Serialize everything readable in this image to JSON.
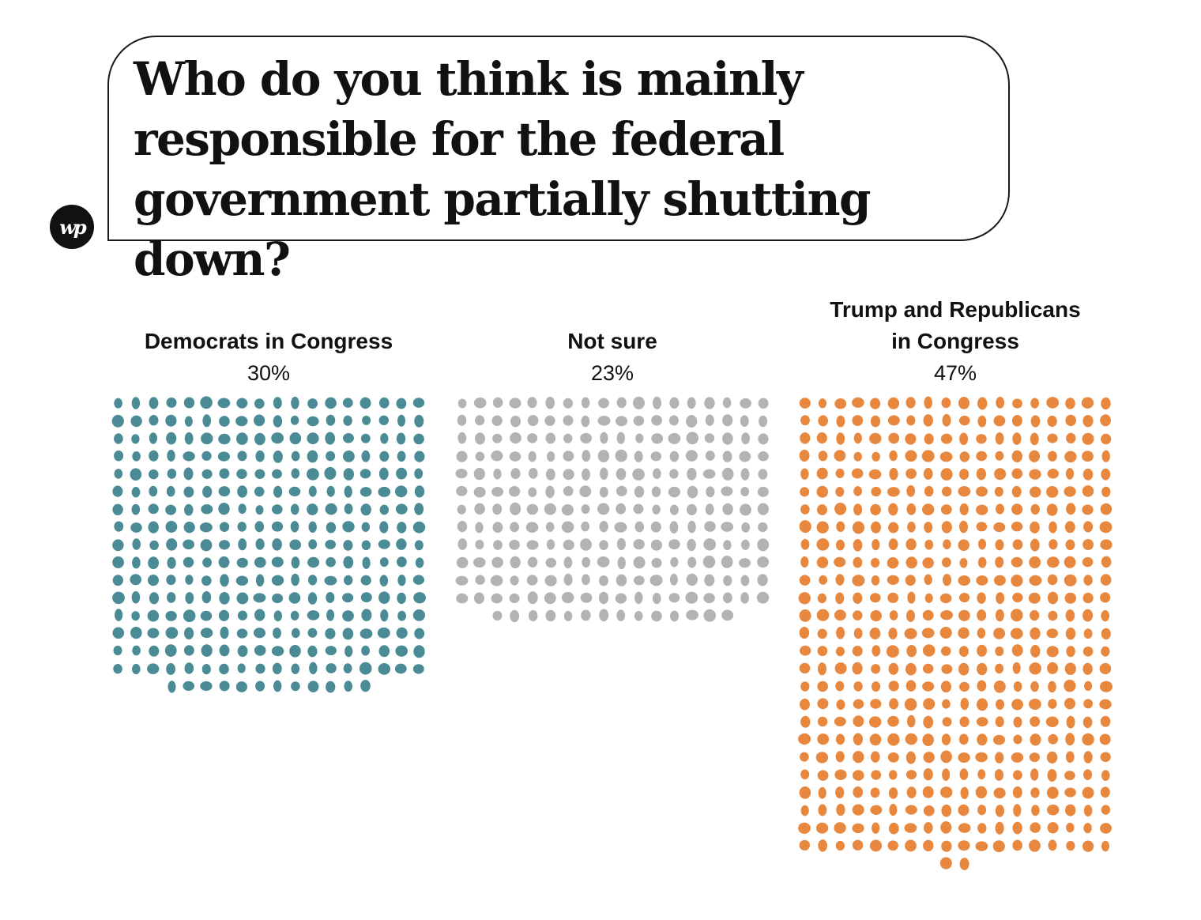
{
  "title": "Who do you think is mainly responsible for the federal government partially shutting down?",
  "logo": {
    "text": "wp",
    "icon": "washington-post-logo-icon"
  },
  "chart_data": {
    "type": "waffle",
    "unit": "percent",
    "total_dots": 1000,
    "categories": [
      {
        "label": "Democrats in Congress",
        "value_label": "30%",
        "value": 30,
        "dots": 300,
        "color": "#4a8b95"
      },
      {
        "label": "Not sure",
        "value_label": "23%",
        "value": 23,
        "dots": 230,
        "color": "#b3b3b3"
      },
      {
        "label": "Trump and Republicans in Congress",
        "label_lines": [
          "Trump and Republicans",
          "in Congress"
        ],
        "value_label": "47%",
        "value": 47,
        "dots": 470,
        "color": "#e8883f"
      }
    ]
  }
}
